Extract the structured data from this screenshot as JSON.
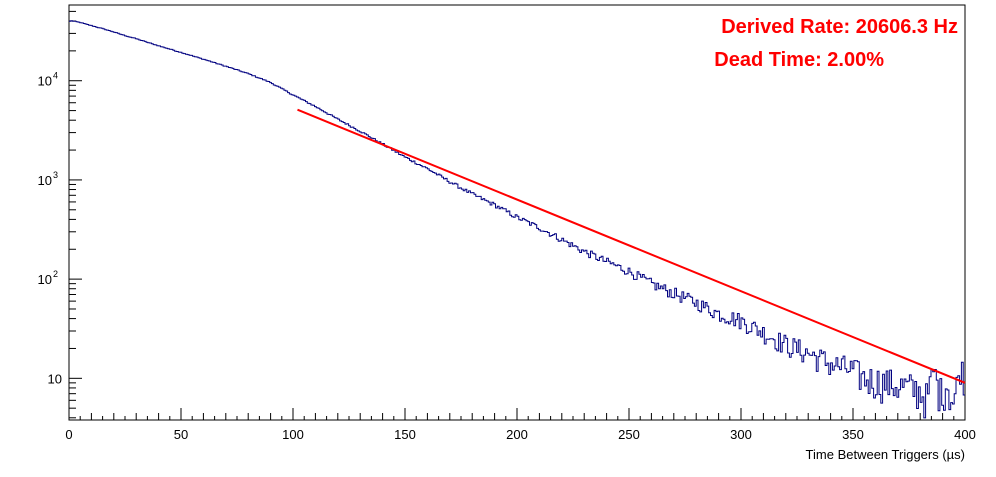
{
  "chart_data": {
    "type": "line",
    "title": "",
    "xlabel": "Time Between Triggers (µs)",
    "ylabel": "",
    "xlim": [
      0,
      400
    ],
    "ylim": [
      3.8,
      58000
    ],
    "y_scale": "log",
    "grid": false,
    "x_ticks": [
      "0",
      "50",
      "100",
      "150",
      "200",
      "250",
      "300",
      "350",
      "400"
    ],
    "y_ticks": [
      {
        "value": 10,
        "base": "10",
        "exp": ""
      },
      {
        "value": 100,
        "base": "10",
        "exp": "2"
      },
      {
        "value": 1000,
        "base": "10",
        "exp": "3"
      },
      {
        "value": 10000,
        "base": "10",
        "exp": "4"
      }
    ],
    "annotations": [
      {
        "text": "Derived Rate: 20606.3 Hz",
        "color": "#ff0000",
        "position": "top-right"
      },
      {
        "text": "Dead Time: 2.00%",
        "color": "#ff0000",
        "position": "top-right"
      }
    ],
    "series": [
      {
        "kind": "histogram",
        "color": "#000080",
        "x": [
          0,
          0.5,
          1,
          1.5,
          2,
          3,
          4,
          5,
          7,
          10,
          15,
          20,
          25,
          30,
          40,
          50,
          60,
          70,
          80,
          90,
          100,
          110,
          120,
          130,
          140,
          150,
          160,
          170,
          180,
          190,
          200,
          210,
          220,
          230,
          240,
          250,
          260,
          270,
          280,
          290,
          300,
          310,
          320,
          330,
          340,
          350,
          355,
          360,
          365,
          370,
          375,
          380,
          383,
          386,
          389,
          392,
          395,
          398,
          400
        ],
        "y": [
          38500,
          40000,
          40500,
          40200,
          39800,
          39500,
          39000,
          38700,
          37500,
          36000,
          33500,
          31000,
          28500,
          26500,
          22500,
          19300,
          16500,
          14000,
          11800,
          9600,
          7200,
          5500,
          4100,
          3100,
          2300,
          1700,
          1300,
          960,
          720,
          560,
          420,
          330,
          250,
          190,
          150,
          120,
          90,
          72,
          58,
          45,
          38,
          29,
          22,
          18,
          14,
          12,
          10,
          9.5,
          9,
          8.5,
          8,
          7.5,
          6,
          12,
          7,
          9,
          5.5,
          13,
          10
        ]
      },
      {
        "kind": "fit",
        "color": "#ff0000",
        "x": [
          102,
          400
        ],
        "y": [
          5100,
          9
        ]
      }
    ]
  }
}
